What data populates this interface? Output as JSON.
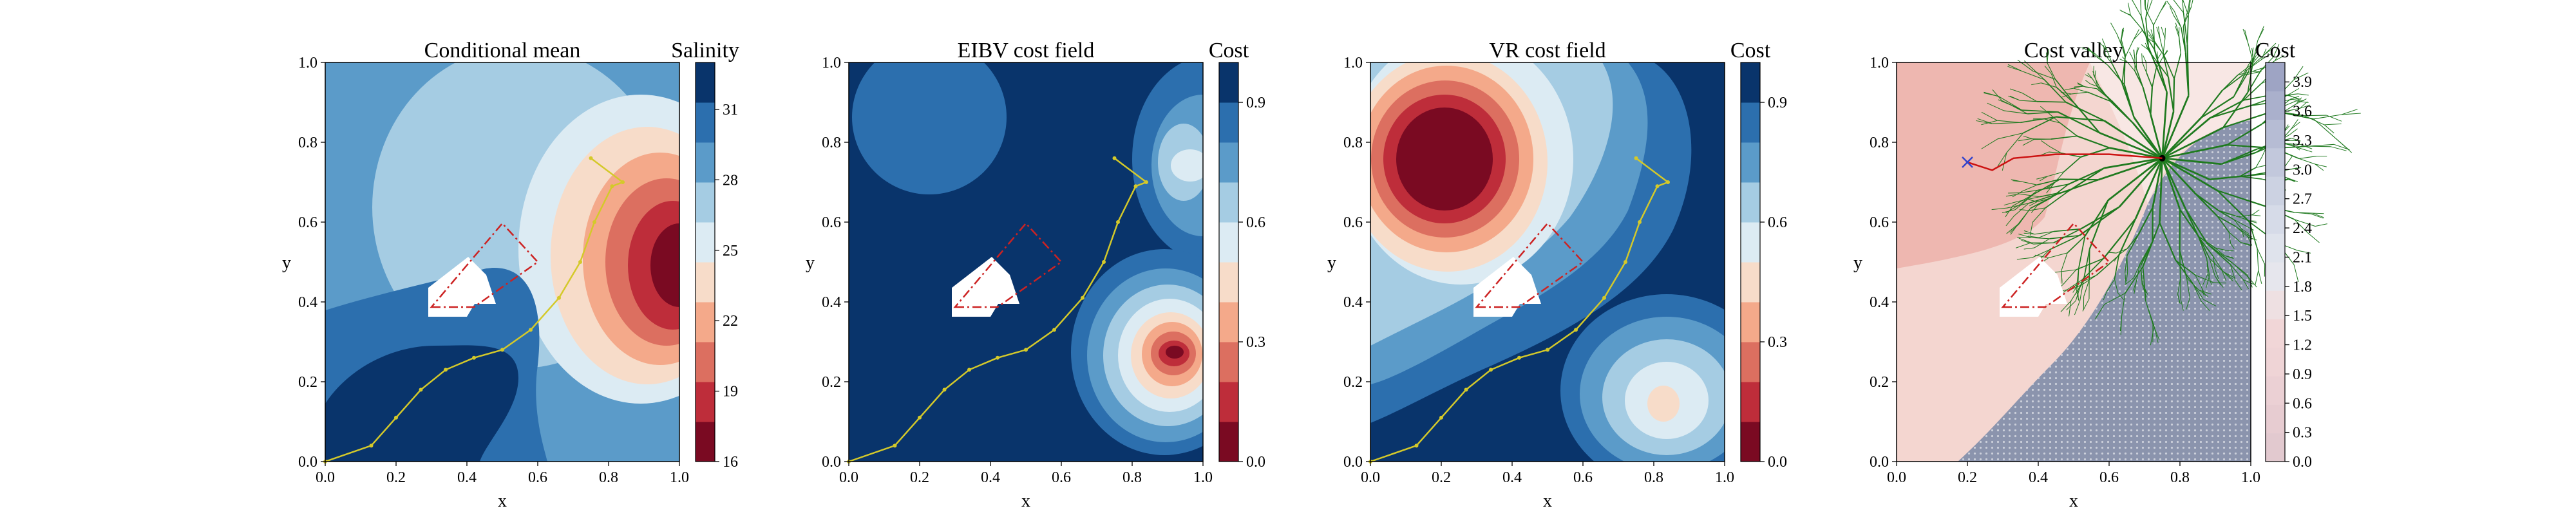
{
  "figure": {
    "panels": [
      {
        "id": "mean",
        "title": "Conditional mean",
        "xlabel": "x",
        "ylabel": "y",
        "colorbar_label": "Salinity",
        "colormap": "RdBu",
        "cbar_ticks": [
          "16",
          "19",
          "22",
          "25",
          "28",
          "31"
        ]
      },
      {
        "id": "eibv",
        "title": "EIBV cost field",
        "xlabel": "x",
        "ylabel": "y",
        "colorbar_label": "Cost",
        "colormap": "RdBu",
        "cbar_ticks": [
          "0.0",
          "0.3",
          "0.6",
          "0.9"
        ]
      },
      {
        "id": "vr",
        "title": "VR cost field",
        "xlabel": "x",
        "ylabel": "y",
        "colorbar_label": "Cost",
        "colormap": "RdBu",
        "cbar_ticks": [
          "0.0",
          "0.3",
          "0.6",
          "0.9"
        ]
      },
      {
        "id": "valley",
        "title": "Cost valley",
        "xlabel": "x",
        "ylabel": "y",
        "colorbar_label": "Cost",
        "colormap": "RdBu",
        "cbar_ticks": [
          "0.0",
          "0.3",
          "0.6",
          "0.9",
          "1.2",
          "1.5",
          "1.8",
          "2.1",
          "2.4",
          "2.7",
          "3.0",
          "3.3",
          "3.6",
          "3.9"
        ]
      }
    ],
    "axis_ticks": [
      "0.0",
      "0.2",
      "0.4",
      "0.6",
      "0.8",
      "1.0"
    ]
  },
  "chart_data": [
    {
      "type": "heatmap",
      "title": "Conditional mean",
      "xlabel": "x",
      "ylabel": "y",
      "xlim": [
        0,
        1
      ],
      "ylim": [
        0,
        1
      ],
      "colorbar": {
        "label": "Salinity",
        "range": [
          16,
          33
        ],
        "ticks": [
          16,
          19,
          22,
          25,
          28,
          31
        ]
      },
      "features": [
        {
          "kind": "high",
          "x": 0.55,
          "y": 0.55,
          "value": 28
        },
        {
          "kind": "low",
          "x": 0.88,
          "y": 0.52,
          "value": 16
        },
        {
          "kind": "high",
          "x": 0.18,
          "y": 0.12,
          "value": 32
        }
      ],
      "path_color": "#d4c92a",
      "path": [
        [
          0.0,
          0.0
        ],
        [
          0.13,
          0.04
        ],
        [
          0.2,
          0.11
        ],
        [
          0.27,
          0.18
        ],
        [
          0.34,
          0.23
        ],
        [
          0.42,
          0.26
        ],
        [
          0.5,
          0.28
        ],
        [
          0.58,
          0.33
        ],
        [
          0.66,
          0.41
        ],
        [
          0.72,
          0.5
        ],
        [
          0.76,
          0.6
        ],
        [
          0.81,
          0.69
        ],
        [
          0.84,
          0.7
        ],
        [
          0.75,
          0.76
        ]
      ],
      "obstacle_polygon": [
        [
          0.3,
          0.4
        ],
        [
          0.42,
          0.4
        ],
        [
          0.6,
          0.5
        ],
        [
          0.5,
          0.6
        ]
      ],
      "obstacle_color": "#cc2222"
    },
    {
      "type": "heatmap",
      "title": "EIBV cost field",
      "xlabel": "x",
      "ylabel": "y",
      "xlim": [
        0,
        1
      ],
      "ylim": [
        0,
        1
      ],
      "colorbar": {
        "label": "Cost",
        "range": [
          0,
          1
        ],
        "ticks": [
          0.0,
          0.3,
          0.6,
          0.9
        ]
      },
      "features": [
        {
          "kind": "low",
          "x": 0.9,
          "y": 0.28,
          "value": 0.0
        },
        {
          "kind": "plateau",
          "x": 0.23,
          "y": 0.87,
          "value": 0.85
        }
      ],
      "path_color": "#d4c92a",
      "path": [
        [
          0.0,
          0.0
        ],
        [
          0.13,
          0.04
        ],
        [
          0.2,
          0.11
        ],
        [
          0.27,
          0.18
        ],
        [
          0.34,
          0.23
        ],
        [
          0.42,
          0.26
        ],
        [
          0.5,
          0.28
        ],
        [
          0.58,
          0.33
        ],
        [
          0.66,
          0.41
        ],
        [
          0.72,
          0.5
        ],
        [
          0.76,
          0.6
        ],
        [
          0.81,
          0.69
        ],
        [
          0.84,
          0.7
        ],
        [
          0.75,
          0.76
        ]
      ],
      "obstacle_polygon": [
        [
          0.3,
          0.4
        ],
        [
          0.42,
          0.4
        ],
        [
          0.6,
          0.5
        ],
        [
          0.5,
          0.6
        ]
      ],
      "obstacle_color": "#cc2222"
    },
    {
      "type": "heatmap",
      "title": "VR cost field",
      "xlabel": "x",
      "ylabel": "y",
      "xlim": [
        0,
        1
      ],
      "ylim": [
        0,
        1
      ],
      "colorbar": {
        "label": "Cost",
        "range": [
          0,
          1
        ],
        "ticks": [
          0.0,
          0.3,
          0.6,
          0.9
        ]
      },
      "features": [
        {
          "kind": "low",
          "x": 0.2,
          "y": 0.75,
          "value": 0.0
        },
        {
          "kind": "low",
          "x": 0.83,
          "y": 0.17,
          "value": 0.5
        }
      ],
      "path_color": "#d4c92a",
      "path": [
        [
          0.0,
          0.0
        ],
        [
          0.13,
          0.04
        ],
        [
          0.2,
          0.11
        ],
        [
          0.27,
          0.18
        ],
        [
          0.34,
          0.23
        ],
        [
          0.42,
          0.26
        ],
        [
          0.5,
          0.28
        ],
        [
          0.58,
          0.33
        ],
        [
          0.66,
          0.41
        ],
        [
          0.72,
          0.5
        ],
        [
          0.76,
          0.6
        ],
        [
          0.81,
          0.69
        ],
        [
          0.84,
          0.7
        ],
        [
          0.75,
          0.76
        ]
      ],
      "obstacle_polygon": [
        [
          0.3,
          0.4
        ],
        [
          0.42,
          0.4
        ],
        [
          0.6,
          0.5
        ],
        [
          0.5,
          0.6
        ]
      ],
      "obstacle_color": "#cc2222"
    },
    {
      "type": "heatmap",
      "title": "Cost valley",
      "xlabel": "x",
      "ylabel": "y",
      "xlim": [
        0,
        1
      ],
      "ylim": [
        0,
        1
      ],
      "colorbar": {
        "label": "Cost",
        "range": [
          0,
          4.1
        ],
        "ticks": [
          0.0,
          0.3,
          0.6,
          0.9,
          1.2,
          1.5,
          1.8,
          2.1,
          2.4,
          2.7,
          3.0,
          3.3,
          3.6,
          3.9
        ]
      },
      "tree_root": [
        0.75,
        0.76
      ],
      "tree_color": "#1f7a1f",
      "current_location": [
        0.2,
        0.75
      ],
      "current_marker_color": "#3344cc",
      "planned_path_color": "#cc1111",
      "planned_path": [
        [
          0.2,
          0.75
        ],
        [
          0.27,
          0.73
        ],
        [
          0.33,
          0.76
        ],
        [
          0.45,
          0.77
        ],
        [
          0.6,
          0.77
        ],
        [
          0.75,
          0.76
        ]
      ],
      "obstacle_polygon": [
        [
          0.3,
          0.4
        ],
        [
          0.42,
          0.4
        ],
        [
          0.6,
          0.5
        ],
        [
          0.5,
          0.6
        ]
      ],
      "obstacle_color": "#cc2222"
    }
  ]
}
